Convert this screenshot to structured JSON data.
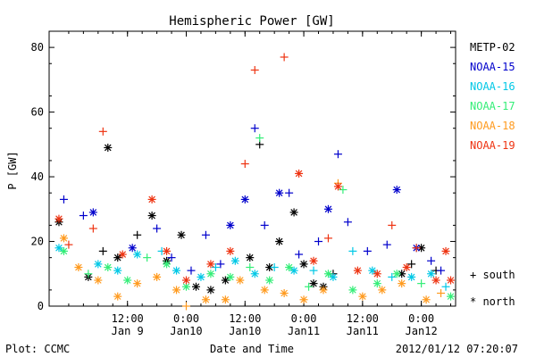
{
  "chart_data": {
    "type": "scatter",
    "title": "Hemispheric Power [GW]",
    "ylabel": "P [GW]",
    "xlabel": "Date and Time",
    "footer_left": "Plot: CCMC",
    "footer_right": "2012/01/12 07:20:07",
    "ylim": [
      0,
      85
    ],
    "yticks": [
      0,
      20,
      40,
      60,
      80
    ],
    "xlim": [
      "2012-01-08T20:00",
      "2012-01-12T07:00"
    ],
    "xticks": [
      {
        "time": "2012-01-09T12:00",
        "line1": "12:00",
        "line2": "Jan 9"
      },
      {
        "time": "2012-01-10T00:00",
        "line1": "0:00",
        "line2": "Jan10"
      },
      {
        "time": "2012-01-10T12:00",
        "line1": "12:00",
        "line2": "Jan10"
      },
      {
        "time": "2012-01-11T00:00",
        "line1": "0:00",
        "line2": "Jan11"
      },
      {
        "time": "2012-01-11T12:00",
        "line1": "12:00",
        "line2": "Jan11"
      },
      {
        "time": "2012-01-12T00:00",
        "line1": "0:00",
        "line2": "Jan12"
      }
    ],
    "legend_placement": "right",
    "symbols": [
      {
        "marker": "plus",
        "label": "+ south"
      },
      {
        "marker": "star",
        "label": "* north"
      }
    ],
    "series": [
      {
        "name": "METP-02",
        "color": "#000000",
        "points": [
          {
            "x": "2012-01-08T22:00",
            "y": 26,
            "m": "star"
          },
          {
            "x": "2012-01-09T04:00",
            "y": 9,
            "m": "star"
          },
          {
            "x": "2012-01-09T07:00",
            "y": 17,
            "m": "plus"
          },
          {
            "x": "2012-01-09T08:00",
            "y": 49,
            "m": "star"
          },
          {
            "x": "2012-01-09T10:00",
            "y": 15,
            "m": "star"
          },
          {
            "x": "2012-01-09T14:00",
            "y": 22,
            "m": "plus"
          },
          {
            "x": "2012-01-09T17:00",
            "y": 28,
            "m": "star"
          },
          {
            "x": "2012-01-09T20:00",
            "y": 14,
            "m": "star"
          },
          {
            "x": "2012-01-09T23:00",
            "y": 22,
            "m": "star"
          },
          {
            "x": "2012-01-10T02:00",
            "y": 6,
            "m": "star"
          },
          {
            "x": "2012-01-10T05:00",
            "y": 5,
            "m": "star"
          },
          {
            "x": "2012-01-10T08:00",
            "y": 8,
            "m": "star"
          },
          {
            "x": "2012-01-10T13:00",
            "y": 15,
            "m": "star"
          },
          {
            "x": "2012-01-10T15:00",
            "y": 50,
            "m": "plus"
          },
          {
            "x": "2012-01-10T17:00",
            "y": 12,
            "m": "star"
          },
          {
            "x": "2012-01-10T19:00",
            "y": 20,
            "m": "star"
          },
          {
            "x": "2012-01-10T22:00",
            "y": 29,
            "m": "star"
          },
          {
            "x": "2012-01-11T00:00",
            "y": 13,
            "m": "star"
          },
          {
            "x": "2012-01-11T02:00",
            "y": 7,
            "m": "star"
          },
          {
            "x": "2012-01-11T04:00",
            "y": 6,
            "m": "star"
          },
          {
            "x": "2012-01-11T06:00",
            "y": 10,
            "m": "plus"
          },
          {
            "x": "2012-01-11T20:00",
            "y": 10,
            "m": "star"
          },
          {
            "x": "2012-01-11T22:00",
            "y": 13,
            "m": "plus"
          },
          {
            "x": "2012-01-12T00:00",
            "y": 18,
            "m": "star"
          },
          {
            "x": "2012-01-12T03:00",
            "y": 11,
            "m": "plus"
          }
        ]
      },
      {
        "name": "NOAA-15",
        "color": "#0000cc",
        "points": [
          {
            "x": "2012-01-08T23:00",
            "y": 33,
            "m": "plus"
          },
          {
            "x": "2012-01-09T03:00",
            "y": 28,
            "m": "plus"
          },
          {
            "x": "2012-01-09T05:00",
            "y": 29,
            "m": "star"
          },
          {
            "x": "2012-01-09T13:00",
            "y": 18,
            "m": "star"
          },
          {
            "x": "2012-01-09T18:00",
            "y": 24,
            "m": "plus"
          },
          {
            "x": "2012-01-09T21:00",
            "y": 15,
            "m": "plus"
          },
          {
            "x": "2012-01-10T01:00",
            "y": 11,
            "m": "plus"
          },
          {
            "x": "2012-01-10T04:00",
            "y": 22,
            "m": "plus"
          },
          {
            "x": "2012-01-10T07:00",
            "y": 13,
            "m": "plus"
          },
          {
            "x": "2012-01-10T09:00",
            "y": 25,
            "m": "star"
          },
          {
            "x": "2012-01-10T12:00",
            "y": 33,
            "m": "star"
          },
          {
            "x": "2012-01-10T14:00",
            "y": 55,
            "m": "plus"
          },
          {
            "x": "2012-01-10T16:00",
            "y": 25,
            "m": "plus"
          },
          {
            "x": "2012-01-10T19:00",
            "y": 35,
            "m": "star"
          },
          {
            "x": "2012-01-10T21:00",
            "y": 35,
            "m": "plus"
          },
          {
            "x": "2012-01-10T23:00",
            "y": 16,
            "m": "plus"
          },
          {
            "x": "2012-01-11T03:00",
            "y": 20,
            "m": "plus"
          },
          {
            "x": "2012-01-11T05:00",
            "y": 30,
            "m": "star"
          },
          {
            "x": "2012-01-11T07:00",
            "y": 47,
            "m": "plus"
          },
          {
            "x": "2012-01-11T09:00",
            "y": 26,
            "m": "plus"
          },
          {
            "x": "2012-01-11T13:00",
            "y": 17,
            "m": "plus"
          },
          {
            "x": "2012-01-11T17:00",
            "y": 19,
            "m": "plus"
          },
          {
            "x": "2012-01-11T19:00",
            "y": 36,
            "m": "star"
          },
          {
            "x": "2012-01-11T23:00",
            "y": 18,
            "m": "star"
          },
          {
            "x": "2012-01-12T02:00",
            "y": 14,
            "m": "plus"
          },
          {
            "x": "2012-01-12T04:00",
            "y": 11,
            "m": "plus"
          }
        ]
      },
      {
        "name": "NOAA-16",
        "color": "#00c8e6",
        "points": [
          {
            "x": "2012-01-08T22:00",
            "y": 18,
            "m": "star"
          },
          {
            "x": "2012-01-09T06:00",
            "y": 13,
            "m": "star"
          },
          {
            "x": "2012-01-09T10:00",
            "y": 11,
            "m": "star"
          },
          {
            "x": "2012-01-09T14:00",
            "y": 16,
            "m": "star"
          },
          {
            "x": "2012-01-09T19:00",
            "y": 17,
            "m": "plus"
          },
          {
            "x": "2012-01-09T22:00",
            "y": 11,
            "m": "star"
          },
          {
            "x": "2012-01-10T03:00",
            "y": 9,
            "m": "star"
          },
          {
            "x": "2012-01-10T06:00",
            "y": 12,
            "m": "plus"
          },
          {
            "x": "2012-01-10T10:00",
            "y": 14,
            "m": "star"
          },
          {
            "x": "2012-01-10T14:00",
            "y": 10,
            "m": "star"
          },
          {
            "x": "2012-01-10T18:00",
            "y": 12,
            "m": "plus"
          },
          {
            "x": "2012-01-10T22:00",
            "y": 11,
            "m": "star"
          },
          {
            "x": "2012-01-11T02:00",
            "y": 11,
            "m": "plus"
          },
          {
            "x": "2012-01-11T06:00",
            "y": 9,
            "m": "star"
          },
          {
            "x": "2012-01-11T10:00",
            "y": 17,
            "m": "plus"
          },
          {
            "x": "2012-01-11T14:00",
            "y": 11,
            "m": "star"
          },
          {
            "x": "2012-01-11T18:00",
            "y": 9,
            "m": "plus"
          },
          {
            "x": "2012-01-11T22:00",
            "y": 9,
            "m": "star"
          },
          {
            "x": "2012-01-12T02:00",
            "y": 10,
            "m": "star"
          },
          {
            "x": "2012-01-12T05:00",
            "y": 6,
            "m": "plus"
          }
        ]
      },
      {
        "name": "NOAA-17",
        "color": "#33ee77",
        "points": [
          {
            "x": "2012-01-08T23:00",
            "y": 17,
            "m": "star"
          },
          {
            "x": "2012-01-09T04:00",
            "y": 10,
            "m": "plus"
          },
          {
            "x": "2012-01-09T08:00",
            "y": 12,
            "m": "star"
          },
          {
            "x": "2012-01-09T12:00",
            "y": 8,
            "m": "star"
          },
          {
            "x": "2012-01-09T16:00",
            "y": 15,
            "m": "plus"
          },
          {
            "x": "2012-01-09T20:00",
            "y": 13,
            "m": "star"
          },
          {
            "x": "2012-01-10T00:00",
            "y": 6,
            "m": "star"
          },
          {
            "x": "2012-01-10T05:00",
            "y": 10,
            "m": "star"
          },
          {
            "x": "2012-01-10T09:00",
            "y": 9,
            "m": "star"
          },
          {
            "x": "2012-01-10T13:00",
            "y": 12,
            "m": "plus"
          },
          {
            "x": "2012-01-10T15:00",
            "y": 52,
            "m": "plus"
          },
          {
            "x": "2012-01-10T17:00",
            "y": 8,
            "m": "star"
          },
          {
            "x": "2012-01-10T21:00",
            "y": 12,
            "m": "star"
          },
          {
            "x": "2012-01-11T01:00",
            "y": 6,
            "m": "plus"
          },
          {
            "x": "2012-01-11T05:00",
            "y": 10,
            "m": "star"
          },
          {
            "x": "2012-01-11T08:00",
            "y": 36,
            "m": "plus"
          },
          {
            "x": "2012-01-11T10:00",
            "y": 5,
            "m": "star"
          },
          {
            "x": "2012-01-11T15:00",
            "y": 7,
            "m": "star"
          },
          {
            "x": "2012-01-11T19:00",
            "y": 10,
            "m": "star"
          },
          {
            "x": "2012-01-12T00:00",
            "y": 7,
            "m": "plus"
          },
          {
            "x": "2012-01-12T06:00",
            "y": 3,
            "m": "star"
          }
        ]
      },
      {
        "name": "NOAA-18",
        "color": "#ff9a1e",
        "points": [
          {
            "x": "2012-01-08T23:00",
            "y": 21,
            "m": "star"
          },
          {
            "x": "2012-01-09T02:00",
            "y": 12,
            "m": "star"
          },
          {
            "x": "2012-01-09T06:00",
            "y": 8,
            "m": "star"
          },
          {
            "x": "2012-01-09T10:00",
            "y": 3,
            "m": "star"
          },
          {
            "x": "2012-01-09T14:00",
            "y": 7,
            "m": "star"
          },
          {
            "x": "2012-01-09T18:00",
            "y": 9,
            "m": "star"
          },
          {
            "x": "2012-01-09T22:00",
            "y": 5,
            "m": "star"
          },
          {
            "x": "2012-01-10T00:00",
            "y": 0,
            "m": "plus"
          },
          {
            "x": "2012-01-10T04:00",
            "y": 2,
            "m": "star"
          },
          {
            "x": "2012-01-10T08:00",
            "y": 2,
            "m": "star"
          },
          {
            "x": "2012-01-10T11:00",
            "y": 8,
            "m": "star"
          },
          {
            "x": "2012-01-10T16:00",
            "y": 5,
            "m": "star"
          },
          {
            "x": "2012-01-10T20:00",
            "y": 4,
            "m": "star"
          },
          {
            "x": "2012-01-11T00:00",
            "y": 2,
            "m": "star"
          },
          {
            "x": "2012-01-11T04:00",
            "y": 5,
            "m": "star"
          },
          {
            "x": "2012-01-11T07:00",
            "y": 38,
            "m": "plus"
          },
          {
            "x": "2012-01-11T12:00",
            "y": 3,
            "m": "star"
          },
          {
            "x": "2012-01-11T16:00",
            "y": 5,
            "m": "star"
          },
          {
            "x": "2012-01-11T20:00",
            "y": 7,
            "m": "star"
          },
          {
            "x": "2012-01-12T01:00",
            "y": 2,
            "m": "star"
          },
          {
            "x": "2012-01-12T04:00",
            "y": 4,
            "m": "plus"
          }
        ]
      },
      {
        "name": "NOAA-19",
        "color": "#ee3311",
        "points": [
          {
            "x": "2012-01-08T22:00",
            "y": 27,
            "m": "star"
          },
          {
            "x": "2012-01-09T00:00",
            "y": 19,
            "m": "plus"
          },
          {
            "x": "2012-01-09T05:00",
            "y": 24,
            "m": "plus"
          },
          {
            "x": "2012-01-09T07:00",
            "y": 54,
            "m": "plus"
          },
          {
            "x": "2012-01-09T11:00",
            "y": 16,
            "m": "star"
          },
          {
            "x": "2012-01-09T17:00",
            "y": 33,
            "m": "star"
          },
          {
            "x": "2012-01-09T20:00",
            "y": 17,
            "m": "star"
          },
          {
            "x": "2012-01-10T00:00",
            "y": 8,
            "m": "star"
          },
          {
            "x": "2012-01-10T05:00",
            "y": 13,
            "m": "star"
          },
          {
            "x": "2012-01-10T09:00",
            "y": 17,
            "m": "star"
          },
          {
            "x": "2012-01-10T12:00",
            "y": 44,
            "m": "plus"
          },
          {
            "x": "2012-01-10T14:00",
            "y": 73,
            "m": "plus"
          },
          {
            "x": "2012-01-10T20:00",
            "y": 77,
            "m": "plus"
          },
          {
            "x": "2012-01-10T23:00",
            "y": 41,
            "m": "star"
          },
          {
            "x": "2012-01-11T02:00",
            "y": 14,
            "m": "star"
          },
          {
            "x": "2012-01-11T05:00",
            "y": 21,
            "m": "plus"
          },
          {
            "x": "2012-01-11T07:00",
            "y": 37,
            "m": "star"
          },
          {
            "x": "2012-01-11T11:00",
            "y": 11,
            "m": "star"
          },
          {
            "x": "2012-01-11T15:00",
            "y": 10,
            "m": "star"
          },
          {
            "x": "2012-01-11T18:00",
            "y": 25,
            "m": "plus"
          },
          {
            "x": "2012-01-11T21:00",
            "y": 12,
            "m": "star"
          },
          {
            "x": "2012-01-11T23:00",
            "y": 18,
            "m": "plus"
          },
          {
            "x": "2012-01-12T03:00",
            "y": 8,
            "m": "star"
          },
          {
            "x": "2012-01-12T05:00",
            "y": 17,
            "m": "star"
          },
          {
            "x": "2012-01-12T06:00",
            "y": 8,
            "m": "star"
          }
        ]
      }
    ]
  }
}
